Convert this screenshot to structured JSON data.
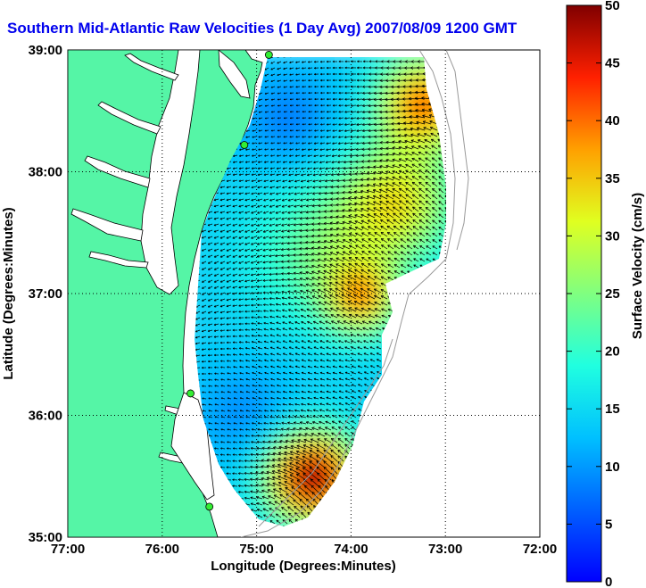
{
  "title": "Southern Mid-Atlantic Raw Velocities (1 Day Avg) 2007/08/09 1200 GMT",
  "colors": {
    "land": "#55f5a6",
    "ocean": "#ffffff",
    "station": "#33ee33",
    "arrows": "#000000"
  },
  "chart_data": {
    "type": "heatmap",
    "xlabel": "Longitude (Degrees:Minutes)",
    "ylabel": "Latitude (Degrees:Minutes)",
    "xlim": [
      -77,
      -72
    ],
    "ylim": [
      35,
      39
    ],
    "x_ticks": [
      "77:00",
      "76:00",
      "75:00",
      "74:00",
      "73:00",
      "72:00"
    ],
    "y_ticks": [
      "35:00",
      "36:00",
      "37:00",
      "38:00",
      "39:00"
    ],
    "colorbar": {
      "label": "Surface Velocity (cm/s)",
      "min": 0,
      "max": 50,
      "ticks": [
        "0",
        "5",
        "10",
        "15",
        "20",
        "25",
        "30",
        "35",
        "40",
        "45",
        "50"
      ],
      "colormap": "jet"
    },
    "grid": true,
    "stations": [
      {
        "lon": -74.87,
        "lat": 38.96
      },
      {
        "lon": -75.13,
        "lat": 38.22
      },
      {
        "lon": -75.7,
        "lat": 36.18
      },
      {
        "lon": -75.5,
        "lat": 35.25
      }
    ]
  }
}
